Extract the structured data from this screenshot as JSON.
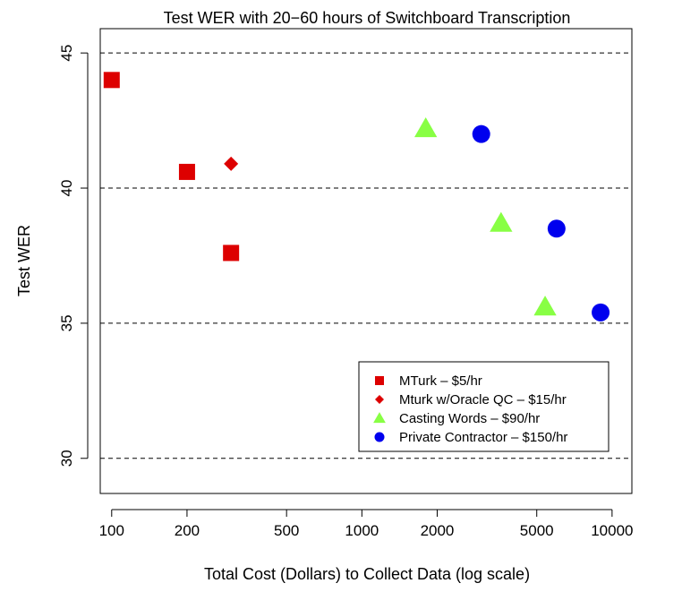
{
  "chart_data": {
    "type": "scatter",
    "title": "Test WER with 20−60 hours of Switchboard Transcription",
    "xlabel": "Total Cost (Dollars) to Collect Data (log scale)",
    "ylabel": "Test WER",
    "x_scale": "log",
    "xlim": [
      90,
      12000
    ],
    "ylim": [
      28.7,
      45.9
    ],
    "x_ticks": [
      100,
      200,
      500,
      1000,
      2000,
      5000,
      10000
    ],
    "x_tick_labels": [
      "100",
      "200",
      "500",
      "1000",
      "2000",
      "5000",
      "10000"
    ],
    "y_ticks": [
      30,
      35,
      40,
      45
    ],
    "y_tick_labels": [
      "30",
      "35",
      "40",
      "45"
    ],
    "gridlines": "horizontal dashed at y ticks",
    "legend_position": "bottom-right",
    "series": [
      {
        "name": "MTurk – $5/hr",
        "marker": "square",
        "color": "#dd0000",
        "points": [
          [
            100,
            44.0
          ],
          [
            200,
            40.6
          ],
          [
            300,
            37.6
          ]
        ]
      },
      {
        "name": "Mturk w/Oracle QC – $15/hr",
        "marker": "diamond",
        "color": "#dd0000",
        "points": [
          [
            300,
            40.9
          ]
        ]
      },
      {
        "name": "Casting Words – $90/hr",
        "marker": "triangle",
        "color": "#88ff44",
        "points": [
          [
            1800,
            42.2
          ],
          [
            3600,
            38.7
          ],
          [
            5400,
            35.6
          ]
        ]
      },
      {
        "name": "Private Contractor – $150/hr",
        "marker": "circle",
        "color": "#0000ee",
        "points": [
          [
            3000,
            42.0
          ],
          [
            6000,
            38.5
          ],
          [
            9000,
            35.4
          ]
        ]
      }
    ]
  }
}
